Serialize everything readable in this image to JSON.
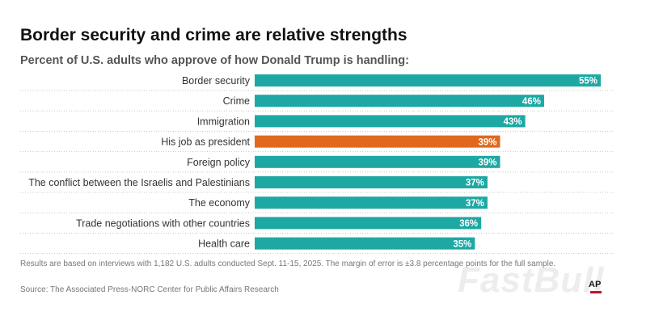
{
  "chart_data": {
    "type": "bar",
    "orientation": "horizontal",
    "title": "Border security and crime are relative strengths",
    "subtitle": "Percent of U.S. adults who approve of how Donald Trump is handling:",
    "categories": [
      "Border security",
      "Crime",
      "Immigration",
      "His job as president",
      "Foreign policy",
      "The conflict between the Israelis and Palestinians",
      "The economy",
      "Trade negotiations with other countries",
      "Health care"
    ],
    "values": [
      55,
      46,
      43,
      39,
      39,
      37,
      37,
      36,
      35
    ],
    "value_labels": [
      "55%",
      "46%",
      "43%",
      "39%",
      "39%",
      "37%",
      "37%",
      "36%",
      "35%"
    ],
    "highlight_index": 3,
    "colors": {
      "default": "#1ea8a4",
      "highlight": "#e0691e"
    },
    "xlim": [
      0,
      55
    ],
    "xlabel": "",
    "ylabel": ""
  },
  "footnote": "Results are based on interviews with 1,182 U.S. adults conducted Sept. 11-15, 2025. The margin of error is ±3.8 percentage points for the full sample.",
  "source": "Source: The Associated Press-NORC Center for Public Affairs Research",
  "watermark": "FastBull",
  "logo": "AP"
}
